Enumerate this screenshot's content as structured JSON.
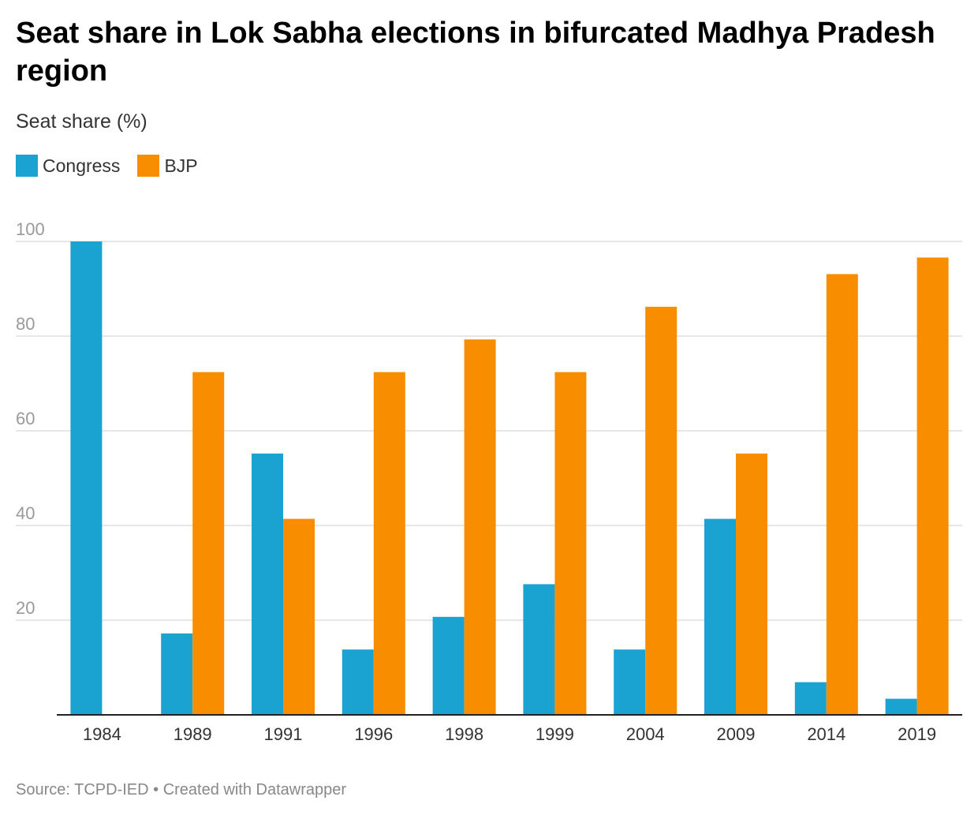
{
  "title": "Seat share in Lok Sabha elections in bifurcated Madhya Pradesh region",
  "subtitle": "Seat share (%)",
  "footer": {
    "source": "Source: TCPD-IED",
    "separator": " • ",
    "credit": "Created with Datawrapper"
  },
  "colors": {
    "congress": "#1aa2d0",
    "bjp": "#f88d00",
    "grid": "#dddddd",
    "tick_text": "#9a9a9a",
    "axis": "#222222"
  },
  "chart_data": {
    "type": "bar",
    "categories": [
      "1984",
      "1989",
      "1991",
      "1996",
      "1998",
      "1999",
      "2004",
      "2009",
      "2014",
      "2019"
    ],
    "series": [
      {
        "name": "Congress",
        "values": [
          100,
          17.2,
          55.2,
          13.8,
          20.7,
          27.6,
          13.8,
          41.4,
          6.9,
          3.4
        ]
      },
      {
        "name": "BJP",
        "values": [
          0,
          72.4,
          41.4,
          72.4,
          79.3,
          72.4,
          86.2,
          55.2,
          93.1,
          96.6
        ]
      }
    ],
    "ylim": [
      0,
      100
    ],
    "yticks": [
      20,
      40,
      60,
      80,
      100
    ],
    "grid": true,
    "legend": "top-left"
  }
}
